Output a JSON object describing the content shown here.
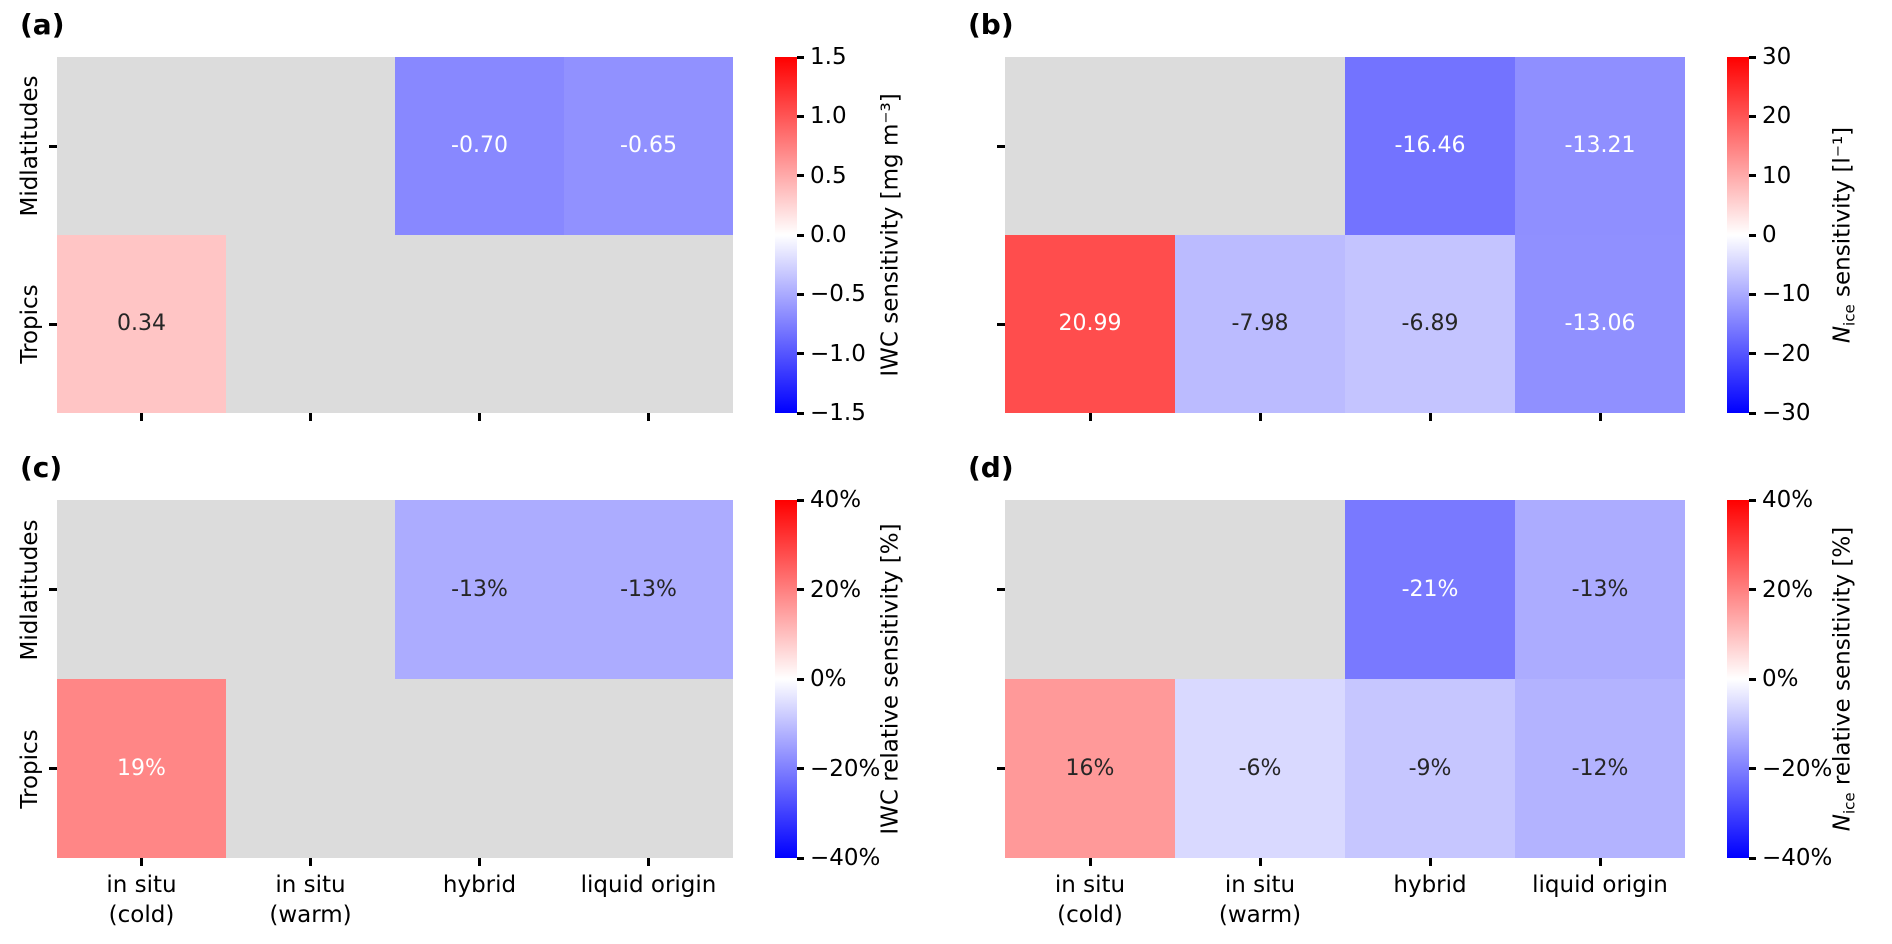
{
  "figure": {
    "background": "#ffffff",
    "missing_color": "#dcdcdc",
    "annotation_dark_color": "#262626",
    "annotation_light_color": "#ffffff",
    "colormap_colors": {
      "negative_end": "#0000ff",
      "midpoint": "#ffffff",
      "positive_end": "#ff0000"
    }
  },
  "x_axis": {
    "categories": [
      {
        "label": "in situ (cold)",
        "lines": [
          "in situ",
          "(cold)"
        ]
      },
      {
        "label": "in situ (warm)",
        "lines": [
          "in situ",
          "(warm)"
        ]
      },
      {
        "label": "hybrid",
        "lines": [
          "hybrid"
        ]
      },
      {
        "label": "liquid origin",
        "lines": [
          "liquid origin"
        ]
      }
    ]
  },
  "y_axis": {
    "categories": [
      "Midlatitudes",
      "Tropics"
    ]
  },
  "panels": [
    {
      "id": "a",
      "label": "(a)",
      "cell_labels": [
        [
          "",
          "",
          "-0.70",
          "-0.65"
        ],
        [
          "0.34",
          "",
          "",
          ""
        ]
      ],
      "colorbar_ticks": [
        "1.5",
        "1.0",
        "0.5",
        "0.0",
        "−0.5",
        "−1.0",
        "−1.5"
      ],
      "colorbar_title": {
        "italic": "",
        "sub": "",
        "rest": "IWC sensitivity [mg m⁻³]"
      },
      "show_y_labels": true,
      "show_x_labels": false
    },
    {
      "id": "b",
      "label": "(b)",
      "cell_labels": [
        [
          "",
          "",
          "-16.46",
          "-13.21"
        ],
        [
          "20.99",
          "-7.98",
          "-6.89",
          "-13.06"
        ]
      ],
      "colorbar_ticks": [
        "30",
        "20",
        "10",
        "0",
        "−10",
        "−20",
        "−30"
      ],
      "colorbar_title": {
        "italic": "N",
        "sub": "ice",
        "rest": " sensitivity [l⁻¹]"
      },
      "show_y_labels": false,
      "show_x_labels": false
    },
    {
      "id": "c",
      "label": "(c)",
      "cell_labels": [
        [
          "",
          "",
          "-13%",
          "-13%"
        ],
        [
          "19%",
          "",
          "",
          ""
        ]
      ],
      "colorbar_ticks": [
        "40%",
        "20%",
        "0%",
        "−20%",
        "−40%"
      ],
      "colorbar_title": {
        "italic": "",
        "sub": "",
        "rest": "IWC relative sensitivity [%]"
      },
      "show_y_labels": true,
      "show_x_labels": true
    },
    {
      "id": "d",
      "label": "(d)",
      "cell_labels": [
        [
          "",
          "",
          "-21%",
          "-13%"
        ],
        [
          "16%",
          "-6%",
          "-9%",
          "-12%"
        ]
      ],
      "colorbar_ticks": [
        "40%",
        "20%",
        "0%",
        "−20%",
        "−40%"
      ],
      "colorbar_title": {
        "italic": "N",
        "sub": "ice",
        "rest": " relative sensitivity [%]"
      },
      "show_y_labels": false,
      "show_x_labels": true
    }
  ],
  "chart_data": [
    {
      "type": "heatmap",
      "panel": "(a)",
      "rows": [
        "Midlatitudes",
        "Tropics"
      ],
      "columns": [
        "in situ (cold)",
        "in situ (warm)",
        "hybrid",
        "liquid origin"
      ],
      "values": [
        [
          null,
          null,
          -0.7,
          -0.65
        ],
        [
          0.34,
          null,
          null,
          null
        ]
      ],
      "colorbar_label": "IWC sensitivity [mg m⁻³]",
      "vmin": -1.5,
      "vmax": 1.5,
      "colormap": "bwr",
      "missing_cells_shown_gray": true
    },
    {
      "type": "heatmap",
      "panel": "(b)",
      "rows": [
        "Midlatitudes",
        "Tropics"
      ],
      "columns": [
        "in situ (cold)",
        "in situ (warm)",
        "hybrid",
        "liquid origin"
      ],
      "values": [
        [
          null,
          null,
          -16.46,
          -13.21
        ],
        [
          20.99,
          -7.98,
          -6.89,
          -13.06
        ]
      ],
      "colorbar_label": "N_ice sensitivity [l⁻¹]",
      "vmin": -30,
      "vmax": 30,
      "colormap": "bwr",
      "missing_cells_shown_gray": true
    },
    {
      "type": "heatmap",
      "panel": "(c)",
      "rows": [
        "Midlatitudes",
        "Tropics"
      ],
      "columns": [
        "in situ (cold)",
        "in situ (warm)",
        "hybrid",
        "liquid origin"
      ],
      "values": [
        [
          null,
          null,
          -13,
          -13
        ],
        [
          19,
          null,
          null,
          null
        ]
      ],
      "unit": "%",
      "colorbar_label": "IWC relative sensitivity [%]",
      "vmin": -40,
      "vmax": 40,
      "colormap": "bwr",
      "missing_cells_shown_gray": true
    },
    {
      "type": "heatmap",
      "panel": "(d)",
      "rows": [
        "Midlatitudes",
        "Tropics"
      ],
      "columns": [
        "in situ (cold)",
        "in situ (warm)",
        "hybrid",
        "liquid origin"
      ],
      "values": [
        [
          null,
          null,
          -21,
          -13
        ],
        [
          16,
          -6,
          -9,
          -12
        ]
      ],
      "unit": "%",
      "colorbar_label": "N_ice relative sensitivity [%]",
      "vmin": -40,
      "vmax": 40,
      "colormap": "bwr",
      "missing_cells_shown_gray": true
    }
  ]
}
